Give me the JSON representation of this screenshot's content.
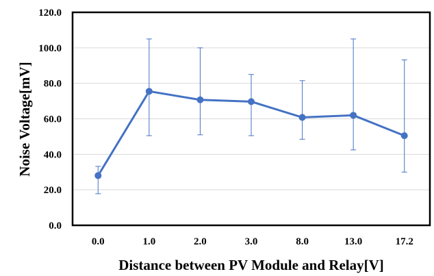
{
  "chart_data": {
    "type": "line",
    "title": "",
    "xlabel": "Distance between PV Module and Relay[V]",
    "ylabel": "Noise Voltage[mV]",
    "categories": [
      "0.0",
      "1.0",
      "2.0",
      "3.0",
      "8.0",
      "13.0",
      "17.2"
    ],
    "ylim": [
      0,
      120
    ],
    "yticks": [
      0,
      20,
      40,
      60,
      80,
      100,
      120
    ],
    "ytick_labels": [
      "0.0",
      "20.0",
      "40.0",
      "60.0",
      "80.0",
      "100.0",
      "120.0"
    ],
    "grid": true,
    "legend": "none",
    "series": [
      {
        "values": [
          28,
          75.5,
          70.7,
          69.7,
          60.8,
          62,
          50.5
        ],
        "error_low": [
          17.8,
          50.5,
          51,
          50.5,
          48.5,
          42.5,
          30
        ],
        "error_high": [
          33.2,
          105,
          100,
          85,
          81.5,
          105,
          93.2
        ],
        "color": "#4472C4"
      }
    ],
    "colors": {
      "line": "#4472C4",
      "grid": "#D9D9D9",
      "axis": "#000000"
    }
  }
}
